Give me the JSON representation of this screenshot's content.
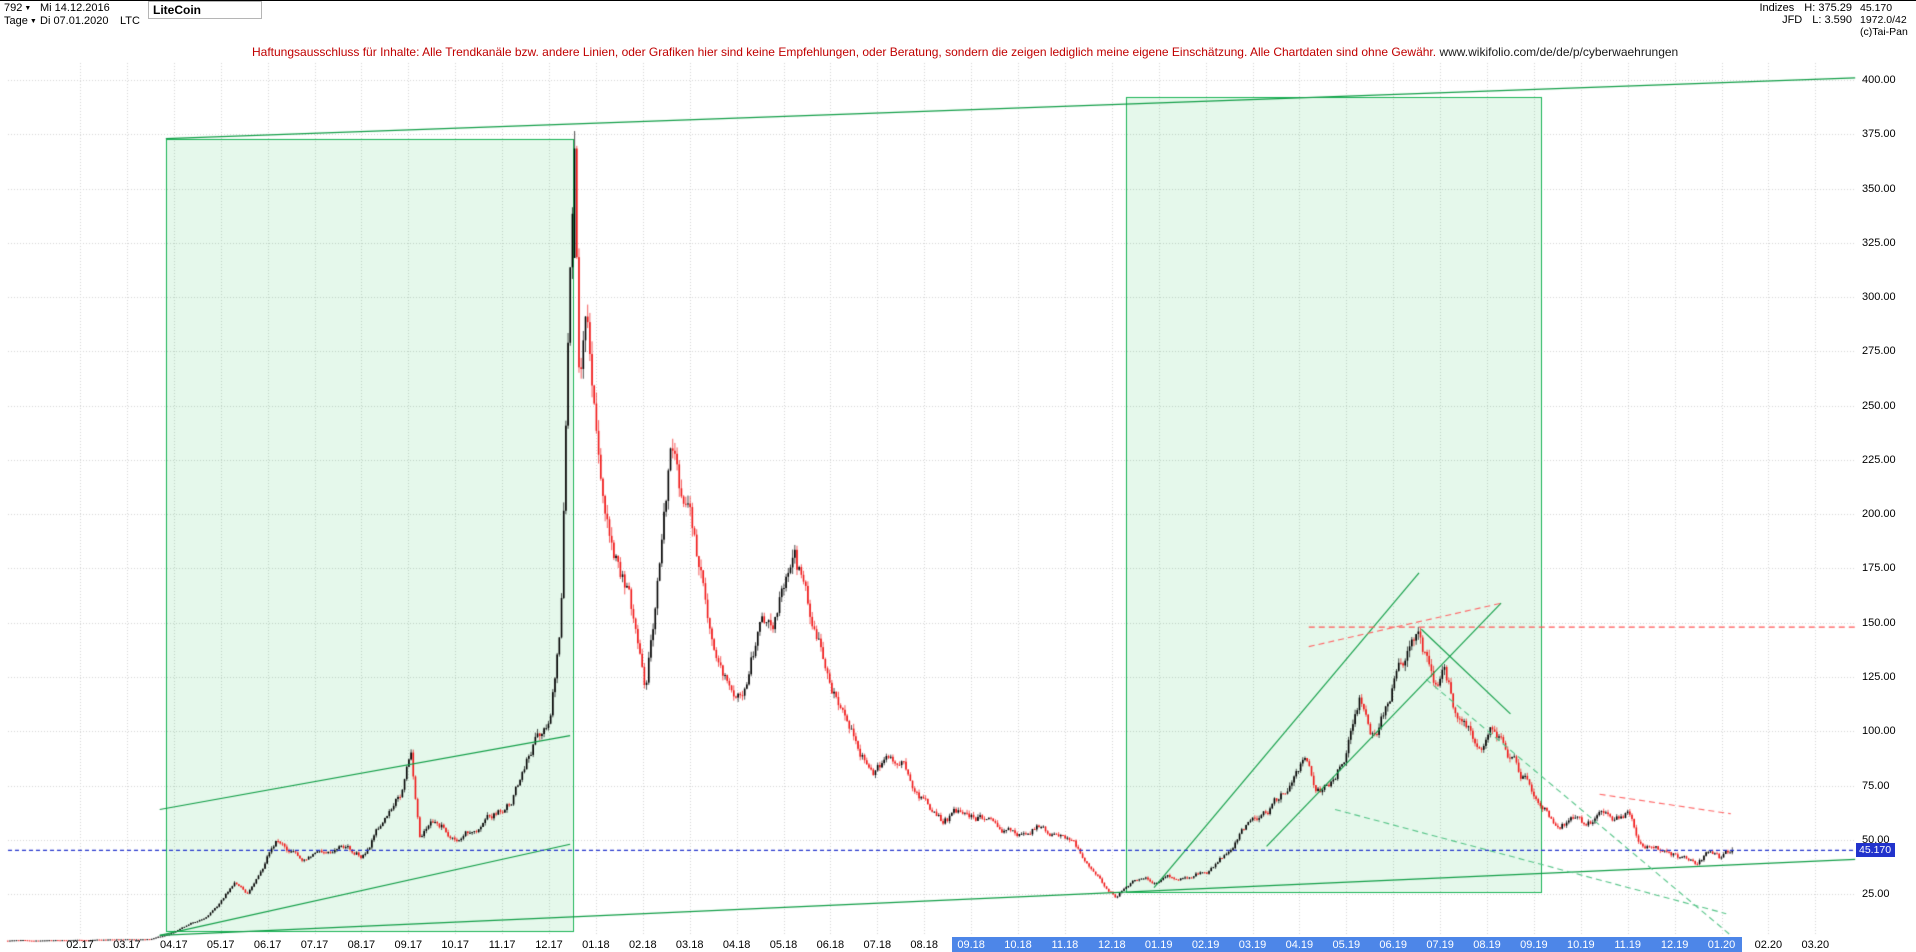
{
  "icons": {
    "dropdown": "▼"
  },
  "header": {
    "bars_count": "792",
    "first_date": "Mi 14.12.2016",
    "period": "Tage",
    "last_date": "Di 07.01.2020",
    "symbol": "LTC",
    "instrument_name": "LiteCoin",
    "right": {
      "index_label": "Indizes",
      "high": "H: 375.29",
      "feed_label": "JFD",
      "low": "L: 3.590"
    },
    "gutter": {
      "last_price": "45.170",
      "volume": "1972.0/42",
      "copyright": "(c)Tai-Pan"
    }
  },
  "disclaimer": {
    "text": "Haftungsausschluss für Inhalte: Alle Trendkanäle bzw. andere Linien, oder Grafiken hier sind keine Empfehlungen, oder Beratung, sondern die zeigen lediglich meine eigene Einschätzung. Alle Chartdaten sind ohne Gewähr.",
    "url": "www.wikifolio.com/de/de/p/cyberwaehrungen"
  },
  "chart_data": {
    "type": "candlestick",
    "title": "LiteCoin",
    "symbol": "LTC",
    "timeframe": "Tage",
    "x_range": {
      "start": "14.12.2016",
      "end": "07.01.2020",
      "bars": 792
    },
    "axis": {
      "m_start": -1.54,
      "m_end": 35.23
    },
    "ylim": [
      0,
      410
    ],
    "y_ticks": [
      "400.00",
      "375.00",
      "350.00",
      "325.00",
      "300.00",
      "275.00",
      "250.00",
      "225.00",
      "200.00",
      "175.00",
      "150.00",
      "125.00",
      "100.00",
      "75.00",
      "50.00",
      "25.00"
    ],
    "x_ticks": [
      "02.17",
      "03.17",
      "04.17",
      "05.17",
      "06.17",
      "07.17",
      "08.17",
      "09.17",
      "10.17",
      "11.17",
      "12.17",
      "01.18",
      "02.18",
      "03.18",
      "04.18",
      "05.18",
      "06.18",
      "07.18",
      "08.18",
      "09.18",
      "10.18",
      "11.18",
      "12.18",
      "01.19",
      "02.19",
      "03.19",
      "04.19",
      "05.19",
      "06.19",
      "07.19",
      "08.19",
      "09.19",
      "10.19",
      "11.19",
      "12.19",
      "01.20",
      "02.20",
      "03.20"
    ],
    "x_tick_highlight": {
      "from": "09.18",
      "to": "01.20"
    },
    "high_all_time": 375.29,
    "low_all_time": 3.59,
    "last_price": 45.17,
    "last_price_label": "45.170",
    "price_path": [
      [
        -1.54,
        3.6
      ],
      [
        -0.8,
        3.7
      ],
      [
        0,
        3.9
      ],
      [
        0.9,
        4.1
      ],
      [
        1.5,
        4.3
      ],
      [
        1.9,
        6.5
      ],
      [
        2.3,
        10.5
      ],
      [
        2.65,
        14
      ],
      [
        3.0,
        21
      ],
      [
        3.3,
        31
      ],
      [
        3.55,
        25
      ],
      [
        3.9,
        37
      ],
      [
        4.2,
        51
      ],
      [
        4.5,
        44
      ],
      [
        4.8,
        40
      ],
      [
        5.2,
        44
      ],
      [
        5.6,
        47
      ],
      [
        6.0,
        43
      ],
      [
        6.5,
        59
      ],
      [
        6.9,
        74
      ],
      [
        7.05,
        88
      ],
      [
        7.25,
        52
      ],
      [
        7.6,
        59
      ],
      [
        8.0,
        51
      ],
      [
        8.4,
        56
      ],
      [
        8.8,
        61
      ],
      [
        9.2,
        68
      ],
      [
        9.5,
        86
      ],
      [
        9.75,
        97
      ],
      [
        10.0,
        103
      ],
      [
        10.25,
        150
      ],
      [
        10.45,
        310
      ],
      [
        10.55,
        368
      ],
      [
        10.65,
        255
      ],
      [
        10.8,
        298
      ],
      [
        10.95,
        252
      ],
      [
        11.15,
        215
      ],
      [
        11.4,
        185
      ],
      [
        11.65,
        170
      ],
      [
        11.85,
        145
      ],
      [
        12.05,
        118
      ],
      [
        12.35,
        175
      ],
      [
        12.6,
        228
      ],
      [
        12.85,
        208
      ],
      [
        13.1,
        190
      ],
      [
        13.4,
        152
      ],
      [
        13.7,
        128
      ],
      [
        13.95,
        116
      ],
      [
        14.25,
        128
      ],
      [
        14.55,
        152
      ],
      [
        14.8,
        148
      ],
      [
        15.05,
        168
      ],
      [
        15.25,
        174
      ],
      [
        15.55,
        158
      ],
      [
        15.9,
        132
      ],
      [
        16.2,
        112
      ],
      [
        16.55,
        95
      ],
      [
        16.9,
        81
      ],
      [
        17.2,
        84
      ],
      [
        17.5,
        88
      ],
      [
        17.8,
        74
      ],
      [
        18.1,
        64
      ],
      [
        18.4,
        58
      ],
      [
        18.8,
        64
      ],
      [
        19.2,
        60
      ],
      [
        19.6,
        57
      ],
      [
        20.0,
        52
      ],
      [
        20.4,
        57
      ],
      [
        20.8,
        52
      ],
      [
        21.2,
        49
      ],
      [
        21.5,
        38
      ],
      [
        21.8,
        30
      ],
      [
        22.1,
        24
      ],
      [
        22.35,
        30
      ],
      [
        22.6,
        33
      ],
      [
        22.9,
        31
      ],
      [
        23.3,
        33
      ],
      [
        23.7,
        34
      ],
      [
        24.1,
        36
      ],
      [
        24.5,
        45
      ],
      [
        24.85,
        56
      ],
      [
        25.2,
        60
      ],
      [
        25.5,
        68
      ],
      [
        25.8,
        76
      ],
      [
        26.1,
        88
      ],
      [
        26.35,
        73
      ],
      [
        26.7,
        76
      ],
      [
        27.0,
        90
      ],
      [
        27.3,
        114
      ],
      [
        27.55,
        100
      ],
      [
        27.8,
        108
      ],
      [
        28.05,
        122
      ],
      [
        28.3,
        136
      ],
      [
        28.5,
        142
      ],
      [
        28.7,
        131
      ],
      [
        28.9,
        120
      ],
      [
        29.1,
        127
      ],
      [
        29.35,
        108
      ],
      [
        29.6,
        99
      ],
      [
        29.85,
        90
      ],
      [
        30.1,
        101
      ],
      [
        30.35,
        93
      ],
      [
        30.6,
        86
      ],
      [
        30.9,
        74
      ],
      [
        31.2,
        67
      ],
      [
        31.5,
        56
      ],
      [
        31.8,
        59
      ],
      [
        32.1,
        57
      ],
      [
        32.4,
        61
      ],
      [
        32.7,
        58
      ],
      [
        33.0,
        62
      ],
      [
        33.25,
        50
      ],
      [
        33.55,
        46
      ],
      [
        33.85,
        45
      ],
      [
        34.15,
        42
      ],
      [
        34.45,
        39
      ],
      [
        34.7,
        43
      ],
      [
        34.95,
        41
      ],
      [
        35.23,
        45.17
      ]
    ],
    "boxes": [
      {
        "m1": 1.83,
        "p1": 8,
        "m2": 10.5,
        "p2": 373
      },
      {
        "m1": 22.3,
        "p1": 26,
        "m2": 31.15,
        "p2": 392
      }
    ],
    "lines": [
      {
        "name": "long-resistance",
        "m1": 1.83,
        "p1": 373,
        "m2": 37.85,
        "p2": 401,
        "color": "#0f9d45",
        "dash": false
      },
      {
        "name": "long-support",
        "m1": 1.7,
        "p1": 6,
        "m2": 37.85,
        "p2": 41,
        "color": "#0f9d45",
        "dash": false
      },
      {
        "name": "channel-2017-lower",
        "m1": 1.7,
        "p1": 6,
        "m2": 10.45,
        "p2": 48,
        "color": "#0f9d45",
        "dash": false
      },
      {
        "name": "channel-2017-upper",
        "m1": 1.7,
        "p1": 64,
        "m2": 10.45,
        "p2": 98,
        "color": "#0f9d45",
        "dash": false
      },
      {
        "name": "uptrend-2019-a",
        "m1": 22.9,
        "p1": 28,
        "m2": 28.55,
        "p2": 173,
        "color": "#0f9d45",
        "dash": false
      },
      {
        "name": "uptrend-2019-b",
        "m1": 25.3,
        "p1": 47,
        "m2": 30.3,
        "p2": 159,
        "color": "#0f9d45",
        "dash": false
      },
      {
        "name": "downtrend-2019",
        "m1": 28.6,
        "p1": 147,
        "m2": 30.5,
        "p2": 108,
        "color": "#0f9d45",
        "dash": false
      },
      {
        "name": "support-proj-1",
        "m1": 28.7,
        "p1": 124,
        "m2": 35.2,
        "p2": 6,
        "color": "#55c487",
        "dash": true
      },
      {
        "name": "support-proj-2",
        "m1": 26.76,
        "p1": 64,
        "m2": 35.1,
        "p2": 16,
        "color": "#55c487",
        "dash": true
      },
      {
        "name": "resistance-146",
        "m1": 26.2,
        "p1": 148,
        "m2": 37.85,
        "p2": 148,
        "color": "#ff5555",
        "dash": true
      },
      {
        "name": "peak-trend",
        "m1": 26.2,
        "p1": 139,
        "m2": 30.3,
        "p2": 159,
        "color": "#ff6666",
        "dash": true
      },
      {
        "name": "decline-channel",
        "m1": 32.4,
        "p1": 71,
        "m2": 35.2,
        "p2": 62,
        "color": "#ff6666",
        "dash": true
      },
      {
        "name": "last-price",
        "type": "hline",
        "p": 45.17,
        "color": "#2233cc",
        "dash": true
      }
    ],
    "colors": {
      "up": "#000000",
      "down": "#f01818",
      "grid": "#d4d4d4",
      "box_fill": "rgba(40,200,90,0.12)",
      "box_border": "#19b355",
      "axis_highlight": "#4d86e8",
      "last_price_tag": "#2233cc"
    }
  }
}
